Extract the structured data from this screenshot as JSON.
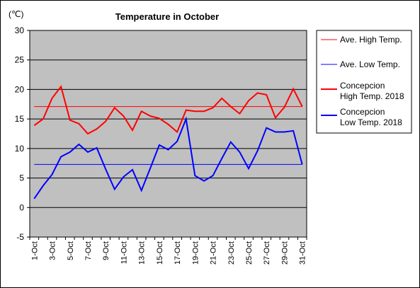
{
  "chart_data": {
    "type": "line",
    "title": "Temperature in October",
    "unit_label": "(℃)",
    "ylim": [
      -5,
      30
    ],
    "y_ticks": [
      -5,
      0,
      5,
      10,
      15,
      20,
      25,
      30
    ],
    "x": [
      "1-Oct",
      "2-Oct",
      "3-Oct",
      "4-Oct",
      "5-Oct",
      "6-Oct",
      "7-Oct",
      "8-Oct",
      "9-Oct",
      "10-Oct",
      "11-Oct",
      "12-Oct",
      "13-Oct",
      "14-Oct",
      "15-Oct",
      "16-Oct",
      "17-Oct",
      "18-Oct",
      "19-Oct",
      "20-Oct",
      "21-Oct",
      "22-Oct",
      "23-Oct",
      "24-Oct",
      "25-Oct",
      "26-Oct",
      "27-Oct",
      "28-Oct",
      "29-Oct",
      "30-Oct",
      "31-Oct"
    ],
    "x_tick_labels": [
      "1-Oct",
      "3-Oct",
      "5-Oct",
      "7-Oct",
      "9-Oct",
      "11-Oct",
      "13-Oct",
      "15-Oct",
      "17-Oct",
      "19-Oct",
      "21-Oct",
      "23-Oct",
      "25-Oct",
      "27-Oct",
      "29-Oct",
      "31-Oct"
    ],
    "background_color": "#c0c0c0",
    "grid": true,
    "legend_position": "right",
    "series": [
      {
        "name": "Ave. High Temp.",
        "color": "#ff0000",
        "width": 1,
        "values": [
          17.1,
          17.1,
          17.1,
          17.1,
          17.1,
          17.1,
          17.1,
          17.1,
          17.1,
          17.1,
          17.1,
          17.1,
          17.1,
          17.1,
          17.1,
          17.1,
          17.1,
          17.1,
          17.1,
          17.1,
          17.1,
          17.1,
          17.1,
          17.1,
          17.1,
          17.1,
          17.1,
          17.1,
          17.1,
          17.1,
          17.1
        ]
      },
      {
        "name": "Ave. Low Temp.",
        "color": "#0000ff",
        "width": 1,
        "values": [
          7.3,
          7.3,
          7.3,
          7.3,
          7.3,
          7.3,
          7.3,
          7.3,
          7.3,
          7.3,
          7.3,
          7.3,
          7.3,
          7.3,
          7.3,
          7.3,
          7.3,
          7.3,
          7.3,
          7.3,
          7.3,
          7.3,
          7.3,
          7.3,
          7.3,
          7.3,
          7.3,
          7.3,
          7.3,
          7.3,
          7.3
        ]
      },
      {
        "name": "Concepcion High Temp. 2018",
        "legend_lines": [
          "Concepcion",
          "High Temp. 2018"
        ],
        "color": "#ff0000",
        "width": 2,
        "values": [
          13.9,
          15.0,
          18.5,
          20.5,
          14.8,
          14.2,
          12.5,
          13.3,
          14.6,
          16.9,
          15.5,
          13.1,
          16.3,
          15.5,
          15.1,
          14.1,
          12.8,
          16.5,
          16.3,
          16.3,
          16.9,
          18.5,
          17.1,
          15.9,
          18.1,
          19.4,
          19.1,
          15.2,
          17.0,
          20.1,
          17.1
        ]
      },
      {
        "name": "Concepcion Low Temp. 2018",
        "legend_lines": [
          "Concepcion",
          "Low Temp. 2018"
        ],
        "color": "#0000ff",
        "width": 2,
        "values": [
          1.5,
          3.7,
          5.6,
          8.6,
          9.4,
          10.7,
          9.4,
          10.1,
          6.5,
          3.1,
          5.2,
          6.4,
          2.9,
          6.7,
          10.6,
          9.8,
          11.2,
          15.0,
          5.4,
          4.5,
          5.4,
          8.3,
          11.1,
          9.4,
          6.6,
          9.6,
          13.5,
          12.8,
          12.8,
          13.0,
          7.3
        ]
      }
    ]
  }
}
